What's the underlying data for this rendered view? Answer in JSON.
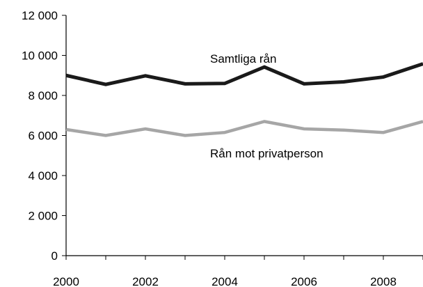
{
  "chart_data": {
    "type": "line",
    "title": "",
    "xlabel": "",
    "ylabel": "",
    "x": [
      2000,
      2001,
      2002,
      2003,
      2004,
      2005,
      2006,
      2007,
      2008,
      2009
    ],
    "xlim": [
      2000,
      2009
    ],
    "ylim": [
      0,
      12000
    ],
    "x_ticks": [
      2000,
      2002,
      2004,
      2006,
      2008
    ],
    "x_tick_labels": [
      "2000",
      "2002",
      "2004",
      "2006",
      "2008"
    ],
    "y_ticks": [
      0,
      2000,
      4000,
      6000,
      8000,
      10000,
      12000
    ],
    "y_tick_labels": [
      "0",
      "2 000",
      "4 000",
      "6 000",
      "8 000",
      "10 000",
      "12 000"
    ],
    "grid": false,
    "legend": "none",
    "series": [
      {
        "name": "Samtliga rån",
        "color": "#1a1a1a",
        "values": [
          9000,
          8550,
          8980,
          8580,
          8600,
          9420,
          8580,
          8680,
          8920,
          9580
        ]
      },
      {
        "name": "Rån mot privatperson",
        "color": "#a6a6a6",
        "values": [
          6300,
          6000,
          6330,
          6000,
          6150,
          6700,
          6330,
          6270,
          6150,
          6700
        ]
      }
    ]
  }
}
